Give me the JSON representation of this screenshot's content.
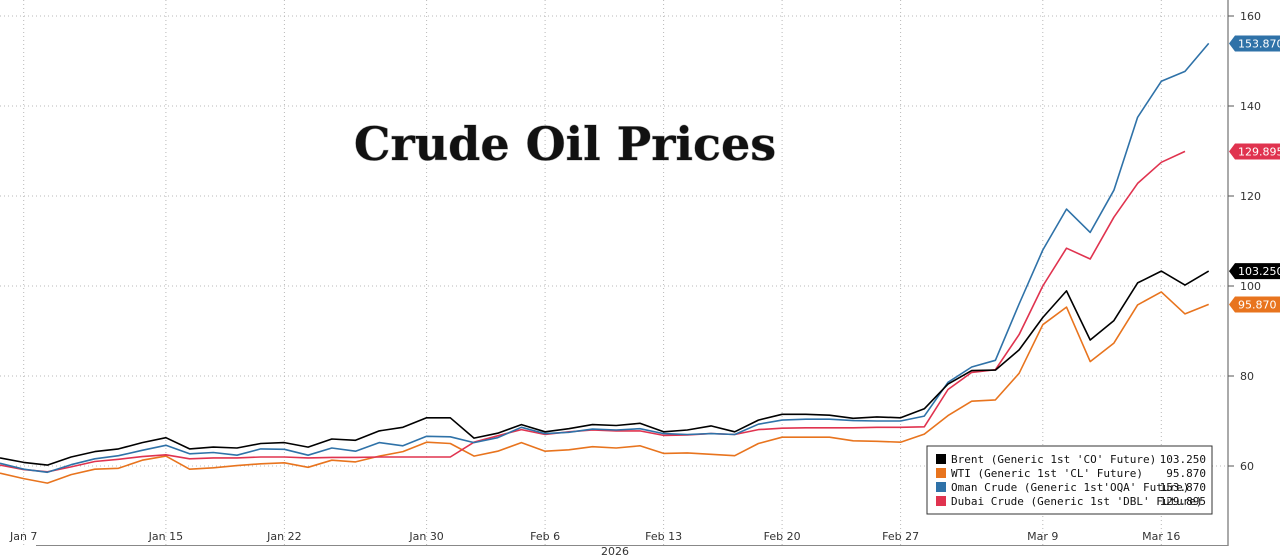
{
  "chart_data": {
    "type": "line",
    "title": "Crude Oil Prices",
    "xlabel": "2026",
    "ylabel": "",
    "ylim": [
      50,
      162
    ],
    "y_ticks": [
      60,
      80,
      100,
      120,
      140,
      160
    ],
    "x_ticks": [
      {
        "label": "Jan 7",
        "index": 1
      },
      {
        "label": "Jan 15",
        "index": 7
      },
      {
        "label": "Jan 22",
        "index": 12
      },
      {
        "label": "Jan 30",
        "index": 18
      },
      {
        "label": "Feb 6",
        "index": 23
      },
      {
        "label": "Feb 13",
        "index": 28
      },
      {
        "label": "Feb 20",
        "index": 33
      },
      {
        "label": "Feb 27",
        "index": 38
      },
      {
        "label": "Mar 9",
        "index": 44
      },
      {
        "label": "Mar 16",
        "index": 49
      }
    ],
    "grid": true,
    "legend_position": "bottom-right",
    "series": [
      {
        "name": "Brent (Generic 1st 'CO' Future)",
        "last": "103.250",
        "color": "#000000",
        "values": [
          61.8,
          60.8,
          60.2,
          62.0,
          63.2,
          63.8,
          65.2,
          66.3,
          63.8,
          64.2,
          64.0,
          65.0,
          65.2,
          64.2,
          66.0,
          65.7,
          67.8,
          68.6,
          70.7,
          70.7,
          66.2,
          67.3,
          69.2,
          67.6,
          68.3,
          69.2,
          69.0,
          69.5,
          67.6,
          68.0,
          68.9,
          67.6,
          70.2,
          71.5,
          71.5,
          71.3,
          70.6,
          70.9,
          70.7,
          72.7,
          78.2,
          81.2,
          81.3,
          85.8,
          93.0,
          98.9,
          88.0,
          92.3,
          100.7,
          103.3,
          100.2,
          103.3
        ]
      },
      {
        "name": "WTI (Generic 1st 'CL' Future)",
        "last": "95.870",
        "color": "#e8741e",
        "values": [
          58.4,
          57.2,
          56.2,
          58.1,
          59.3,
          59.5,
          61.3,
          62.2,
          59.3,
          59.6,
          60.1,
          60.5,
          60.7,
          59.7,
          61.3,
          60.9,
          62.2,
          63.2,
          65.3,
          65.0,
          62.2,
          63.3,
          65.2,
          63.3,
          63.6,
          64.3,
          64.0,
          64.5,
          62.8,
          62.9,
          62.6,
          62.3,
          65.0,
          66.4,
          66.4,
          66.4,
          65.6,
          65.5,
          65.3,
          67.1,
          71.2,
          74.4,
          74.7,
          80.6,
          91.4,
          95.3,
          83.2,
          87.3,
          95.8,
          98.7,
          93.8,
          95.9
        ]
      },
      {
        "name": "Oman Crude (Generic 1st'OQA' Future)",
        "last": "153.870",
        "color": "#2f72a8",
        "values": [
          60.6,
          59.3,
          58.6,
          60.3,
          61.6,
          62.3,
          63.5,
          64.6,
          62.7,
          63.0,
          62.4,
          63.8,
          63.7,
          62.4,
          64.0,
          63.3,
          65.2,
          64.5,
          66.6,
          66.5,
          65.2,
          66.3,
          68.6,
          67.2,
          67.5,
          68.2,
          68.0,
          68.3,
          67.2,
          67.0,
          67.2,
          67.0,
          69.3,
          70.2,
          70.4,
          70.4,
          70.1,
          70.0,
          70.0,
          71.1,
          78.6,
          82.0,
          83.5,
          96.0,
          108.0,
          117.1,
          111.9,
          121.3,
          137.5,
          145.5,
          147.7,
          153.9
        ]
      },
      {
        "name": "Dubai Crude (Generic 1st 'DBL' Future)",
        "last": "129.895",
        "color": "#e0334f",
        "values": [
          60.2,
          59.2,
          58.7,
          59.8,
          61.0,
          61.5,
          62.1,
          62.5,
          61.6,
          61.8,
          61.8,
          62.0,
          62.0,
          61.8,
          61.9,
          61.9,
          62.0,
          62.0,
          62.0,
          62.0,
          65.3,
          66.7,
          68.1,
          67.0,
          67.6,
          68.0,
          67.8,
          67.8,
          66.8,
          66.9,
          67.2,
          67.0,
          68.1,
          68.4,
          68.5,
          68.5,
          68.5,
          68.6,
          68.6,
          68.7,
          77.0,
          80.8,
          81.4,
          89.2,
          100.0,
          108.4,
          106.0,
          115.3,
          122.8,
          127.5,
          129.9
        ]
      }
    ]
  }
}
